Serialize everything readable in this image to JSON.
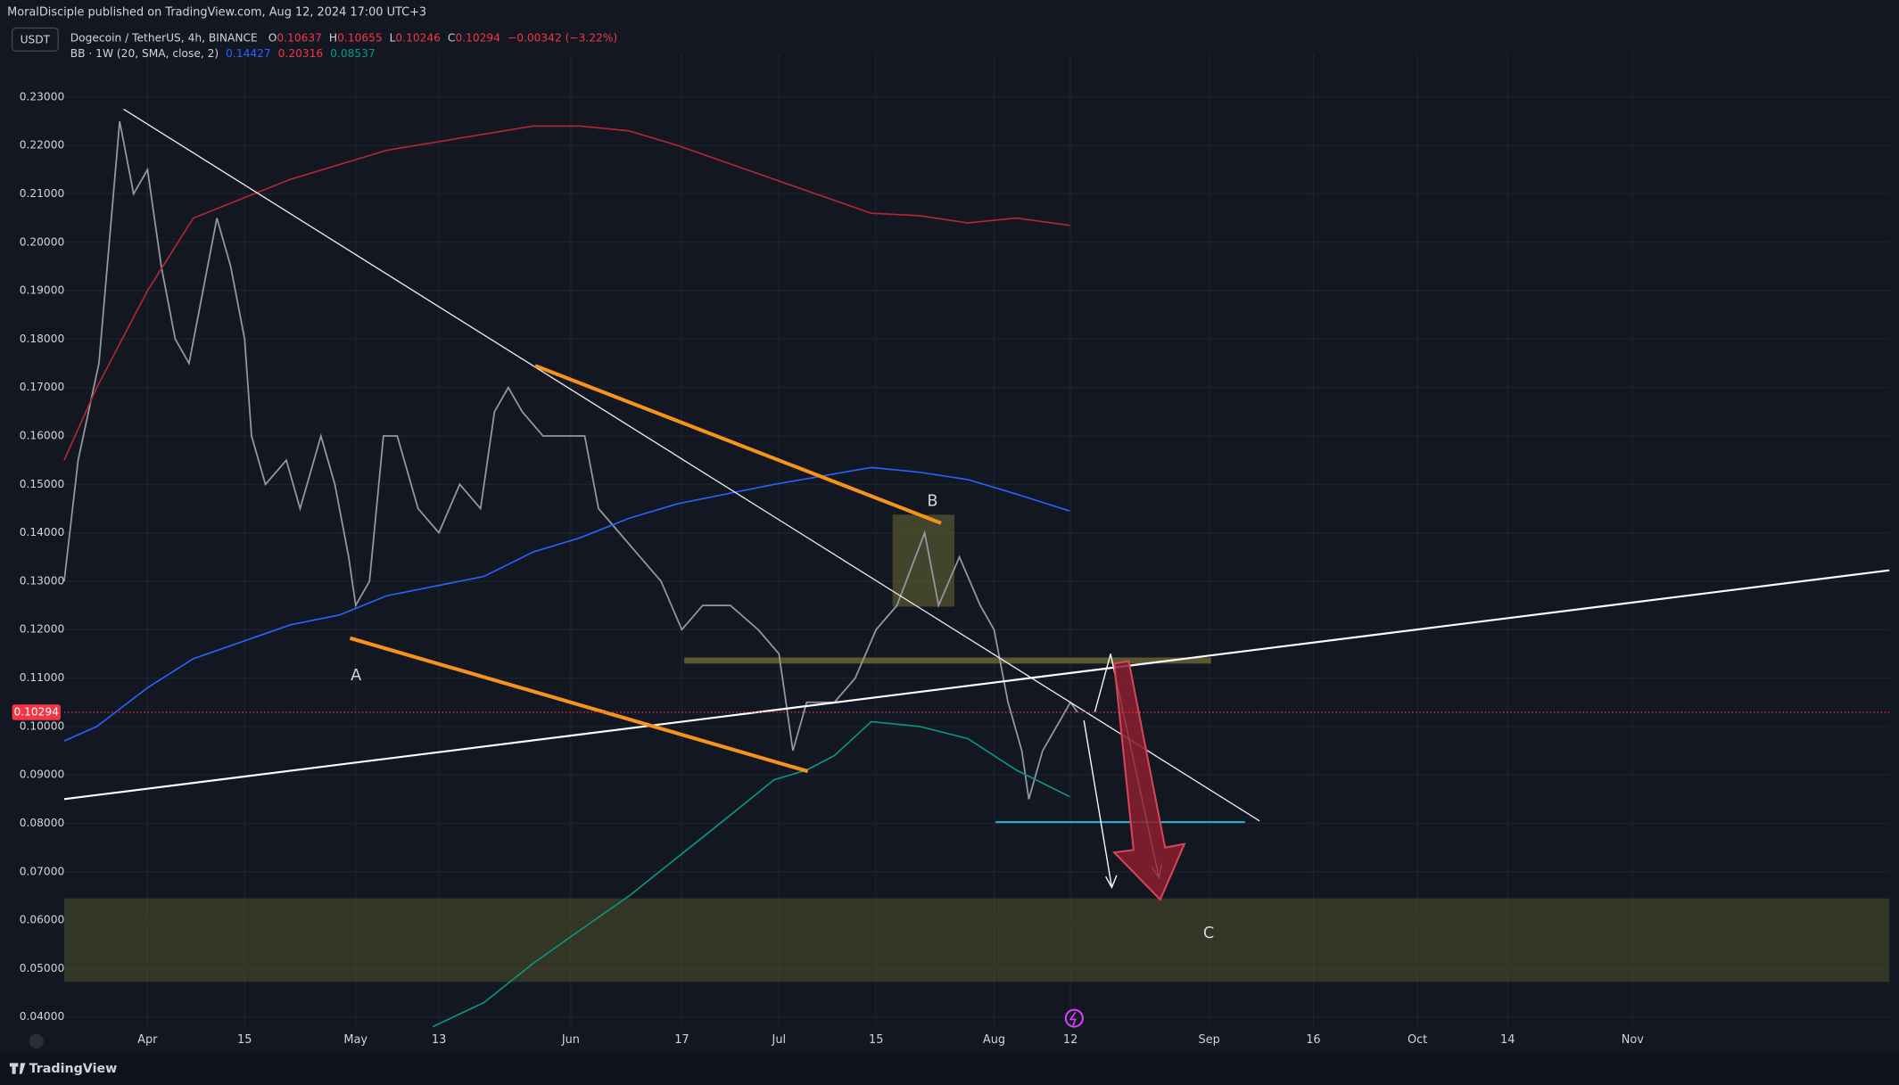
{
  "header": {
    "published": "MoralDisciple published on TradingView.com, Aug 12, 2024 17:00 UTC+3",
    "currency": "USDT",
    "symbol": "Dogecoin / TetherUS, 4h, BINANCE",
    "ohlc": [
      {
        "label": "O",
        "value": "0.10637"
      },
      {
        "label": "H",
        "value": "0.10655"
      },
      {
        "label": "L",
        "value": "0.10246"
      },
      {
        "label": "C",
        "value": "0.10294"
      }
    ],
    "change": "−0.00342 (−3.22%)",
    "indicator": "BB · 1W (20, SMA, close, 2)",
    "indicator_values": [
      "0.14427",
      "0.20316",
      "0.08537"
    ]
  },
  "footer": {
    "brand": "TradingView"
  },
  "chart_data": {
    "type": "line",
    "ylim": [
      0.038,
      0.239
    ],
    "xlim": [
      -12,
      251
    ],
    "yticks": [
      {
        "value": 0.04,
        "label": "0.04000"
      },
      {
        "value": 0.05,
        "label": "0.05000"
      },
      {
        "value": 0.06,
        "label": "0.06000"
      },
      {
        "value": 0.07,
        "label": "0.07000"
      },
      {
        "value": 0.08,
        "label": "0.08000"
      },
      {
        "value": 0.09,
        "label": "0.09000"
      },
      {
        "value": 0.1,
        "label": "0.10000"
      },
      {
        "value": 0.11,
        "label": "0.11000"
      },
      {
        "value": 0.12,
        "label": "0.12000"
      },
      {
        "value": 0.13,
        "label": "0.13000"
      },
      {
        "value": 0.14,
        "label": "0.14000"
      },
      {
        "value": 0.15,
        "label": "0.15000"
      },
      {
        "value": 0.16,
        "label": "0.16000"
      },
      {
        "value": 0.17,
        "label": "0.17000"
      },
      {
        "value": 0.18,
        "label": "0.18000"
      },
      {
        "value": 0.19,
        "label": "0.19000"
      },
      {
        "value": 0.2,
        "label": "0.20000"
      },
      {
        "value": 0.21,
        "label": "0.21000"
      },
      {
        "value": 0.22,
        "label": "0.22000"
      },
      {
        "value": 0.23,
        "label": "0.23000"
      }
    ],
    "xticks": [
      {
        "value": 0,
        "label": "Apr"
      },
      {
        "value": 14,
        "label": "15"
      },
      {
        "value": 30,
        "label": "May"
      },
      {
        "value": 42,
        "label": "13"
      },
      {
        "value": 61,
        "label": "Jun"
      },
      {
        "value": 77,
        "label": "17"
      },
      {
        "value": 91,
        "label": "Jul"
      },
      {
        "value": 105,
        "label": "15"
      },
      {
        "value": 122,
        "label": "Aug"
      },
      {
        "value": 133,
        "label": "12"
      },
      {
        "value": 153,
        "label": "Sep"
      },
      {
        "value": 168,
        "label": "16"
      },
      {
        "value": 183,
        "label": "Oct"
      },
      {
        "value": 196,
        "label": "14"
      },
      {
        "value": 214,
        "label": "Nov"
      }
    ],
    "grid": true,
    "last_price": 0.10294,
    "annotations": [
      "A",
      "B",
      "C"
    ],
    "series": [
      {
        "color": "#9598a1",
        "x": [
          -12,
          -10,
          -7,
          -4,
          -2,
          0,
          2,
          4,
          6,
          8,
          10,
          12,
          14,
          15,
          17,
          20,
          22,
          25,
          27,
          29,
          30,
          32,
          34,
          36,
          39,
          42,
          45,
          48,
          50,
          52,
          54,
          57,
          60,
          63,
          65,
          68,
          71,
          74,
          77,
          80,
          84,
          88,
          91,
          93,
          95,
          99,
          102,
          105,
          108,
          112,
          114,
          117,
          120,
          122,
          124,
          126,
          127,
          129,
          131,
          133,
          134
        ],
        "values": [
          0.13,
          0.155,
          0.175,
          0.225,
          0.21,
          0.215,
          0.195,
          0.18,
          0.175,
          0.19,
          0.205,
          0.195,
          0.18,
          0.16,
          0.15,
          0.155,
          0.145,
          0.16,
          0.15,
          0.135,
          0.125,
          0.13,
          0.16,
          0.16,
          0.145,
          0.14,
          0.15,
          0.145,
          0.165,
          0.17,
          0.165,
          0.16,
          0.16,
          0.16,
          0.145,
          0.14,
          0.135,
          0.13,
          0.12,
          0.125,
          0.125,
          0.12,
          0.115,
          0.095,
          0.105,
          0.105,
          0.11,
          0.12,
          0.125,
          0.14,
          0.125,
          0.135,
          0.125,
          0.12,
          0.105,
          0.095,
          0.085,
          0.095,
          0.1,
          0.105,
          0.103
        ]
      },
      {
        "color": "#b22833",
        "x": [
          -12,
          -7.3,
          0,
          6.6,
          20.6,
          34.5,
          55.5,
          62.4,
          69.4,
          76.4,
          90.3,
          104.3,
          111.3,
          118.2,
          125.2,
          132.9
        ],
        "values": [
          0.155,
          0.17,
          0.19,
          0.205,
          0.213,
          0.219,
          0.224,
          0.224,
          0.223,
          0.22,
          0.213,
          0.206,
          0.2055,
          0.204,
          0.205,
          0.2035
        ]
      },
      {
        "color": "#2962ff",
        "x": [
          -12,
          -7.3,
          0,
          6.6,
          20.6,
          27.6,
          34.5,
          48.5,
          55.5,
          62.4,
          69.4,
          76.4,
          90.3,
          104.3,
          111.3,
          118.2,
          125.2,
          132.9
        ],
        "values": [
          0.097,
          0.1,
          0.108,
          0.114,
          0.121,
          0.123,
          0.127,
          0.131,
          0.136,
          0.139,
          0.143,
          0.146,
          0.15,
          0.1535,
          0.1525,
          0.151,
          0.148,
          0.1445
        ]
      },
      {
        "color": "#089981",
        "x": [
          41.1,
          48.5,
          55.5,
          62.4,
          69.4,
          76.4,
          83.4,
          90.3,
          95,
          99,
          104.3,
          111.3,
          118.2,
          125.2,
          132.9
        ],
        "values": [
          0.038,
          0.043,
          0.051,
          0.058,
          0.065,
          0.073,
          0.081,
          0.089,
          0.091,
          0.094,
          0.101,
          0.1,
          0.0975,
          0.091,
          0.0855
        ]
      }
    ]
  }
}
